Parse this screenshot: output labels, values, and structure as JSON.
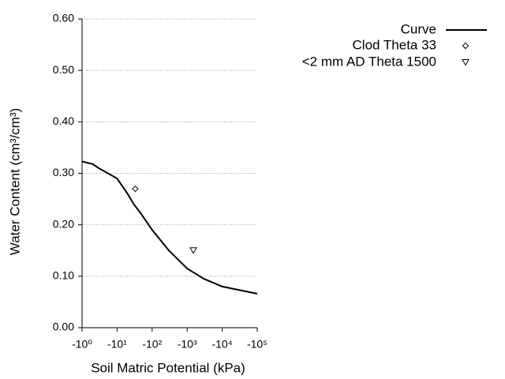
{
  "chart_data": {
    "type": "line",
    "x_label": "Soil Matric Potential (kPa)",
    "y_label": "Water Content (cm³/cm³)",
    "xscale": "log",
    "xlim": [
      -1,
      -100000
    ],
    "xticks": [
      {
        "value": -1,
        "label": "-10⁰"
      },
      {
        "value": -10,
        "label": "-10¹"
      },
      {
        "value": -100,
        "label": "-10²"
      },
      {
        "value": -1000,
        "label": "-10³"
      },
      {
        "value": -10000,
        "label": "-10⁴"
      },
      {
        "value": -100000,
        "label": "-10⁵"
      }
    ],
    "ylim": [
      0,
      0.6
    ],
    "yticks": [
      {
        "value": 0,
        "label": "0.00"
      },
      {
        "value": 0.1,
        "label": "0.10"
      },
      {
        "value": 0.2,
        "label": "0.20"
      },
      {
        "value": 0.3,
        "label": "0.30"
      },
      {
        "value": 0.4,
        "label": "0.40"
      },
      {
        "value": 0.5,
        "label": "0.50"
      },
      {
        "value": 0.6,
        "label": "0.60"
      }
    ],
    "grid": true,
    "legend": "upper-right",
    "series": [
      {
        "name": "Curve",
        "color": "#000000",
        "marker": "line",
        "x": [
          -1,
          -2,
          -3,
          -10,
          -20,
          -30,
          -50,
          -100,
          -300,
          -1000,
          -3000,
          -10000,
          -100000
        ],
        "values": [
          0.323,
          0.318,
          0.31,
          0.29,
          0.26,
          0.24,
          0.22,
          0.19,
          0.15,
          0.115,
          0.095,
          0.08,
          0.066
        ]
      },
      {
        "name": "Clod Theta 33",
        "color": "#000000",
        "marker": "diamond",
        "x": [
          -33
        ],
        "values": [
          0.27
        ]
      },
      {
        "name": "<2 mm AD Theta 1500",
        "color": "#000000",
        "marker": "triangle-down",
        "x": [
          -1500
        ],
        "values": [
          0.15
        ]
      }
    ]
  }
}
